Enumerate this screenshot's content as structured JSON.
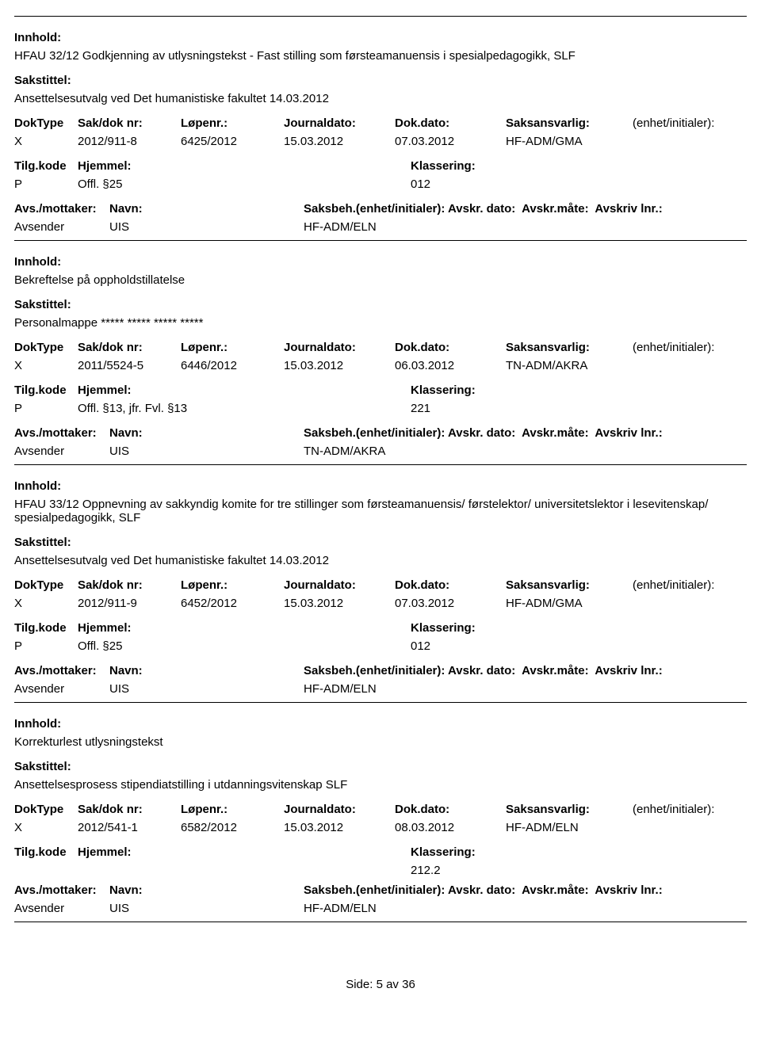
{
  "labels": {
    "innhold": "Innhold:",
    "sakstittel": "Sakstittel:",
    "doktype": "DokType",
    "sakdoknr": "Sak/dok nr:",
    "lopenr": "Løpenr.:",
    "journaldato": "Journaldato:",
    "dokdato": "Dok.dato:",
    "saksansvarlig": "Saksansvarlig:",
    "enhet": "(enhet/initialer):",
    "tilgkode": "Tilg.kode",
    "hjemmel": "Hjemmel:",
    "klassering": "Klassering:",
    "avsmottaker": "Avs./mottaker:",
    "navn": "Navn:",
    "saksbeh": "Saksbeh.(enhet/initialer):",
    "avskrdato": "Avskr. dato:",
    "avskrmate": "Avskr.måte:",
    "avskrivlnr": "Avskriv lnr.:",
    "avsender": "Avsender"
  },
  "records": [
    {
      "innhold": "HFAU 32/12 Godkjenning av utlysningstekst - Fast stilling som førsteamanuensis i spesialpedagogikk, SLF",
      "sakstittel": "Ansettelsesutvalg ved Det humanistiske fakultet 14.03.2012",
      "doktype": "X",
      "sakdoknr": "2012/911-8",
      "lopenr": "6425/2012",
      "journaldato": "15.03.2012",
      "dokdato": "07.03.2012",
      "saksansvarlig": "HF-ADM/GMA",
      "tilgkode": "P",
      "hjemmel": "Offl. §25",
      "klassering": "012",
      "avs_navn": "UIS",
      "saksbeh_val": "HF-ADM/ELN"
    },
    {
      "innhold": "Bekreftelse på oppholdstillatelse",
      "sakstittel": "Personalmappe ***** ***** ***** *****",
      "doktype": "X",
      "sakdoknr": "2011/5524-5",
      "lopenr": "6446/2012",
      "journaldato": "15.03.2012",
      "dokdato": "06.03.2012",
      "saksansvarlig": "TN-ADM/AKRA",
      "tilgkode": "P",
      "hjemmel": "Offl. §13, jfr. Fvl. §13",
      "klassering": "221",
      "avs_navn": "UIS",
      "saksbeh_val": "TN-ADM/AKRA"
    },
    {
      "innhold": "HFAU 33/12 Oppnevning av sakkyndig komite for tre stillinger som førsteamanuensis/ førstelektor/ universitetslektor i lesevitenskap/ spesialpedagogikk, SLF",
      "sakstittel": "Ansettelsesutvalg ved Det humanistiske fakultet 14.03.2012",
      "doktype": "X",
      "sakdoknr": "2012/911-9",
      "lopenr": "6452/2012",
      "journaldato": "15.03.2012",
      "dokdato": "07.03.2012",
      "saksansvarlig": "HF-ADM/GMA",
      "tilgkode": "P",
      "hjemmel": "Offl. §25",
      "klassering": "012",
      "avs_navn": "UIS",
      "saksbeh_val": "HF-ADM/ELN"
    },
    {
      "innhold": "Korrekturlest utlysningstekst",
      "sakstittel": "Ansettelsesprosess stipendiatstilling i utdanningsvitenskap SLF",
      "doktype": "X",
      "sakdoknr": "2012/541-1",
      "lopenr": "6582/2012",
      "journaldato": "15.03.2012",
      "dokdato": "08.03.2012",
      "saksansvarlig": "HF-ADM/ELN",
      "tilgkode": "",
      "hjemmel": "",
      "klassering": "212.2",
      "avs_navn": "UIS",
      "saksbeh_val": "HF-ADM/ELN"
    }
  ],
  "footer": {
    "text": "Side: 5 av 36"
  }
}
